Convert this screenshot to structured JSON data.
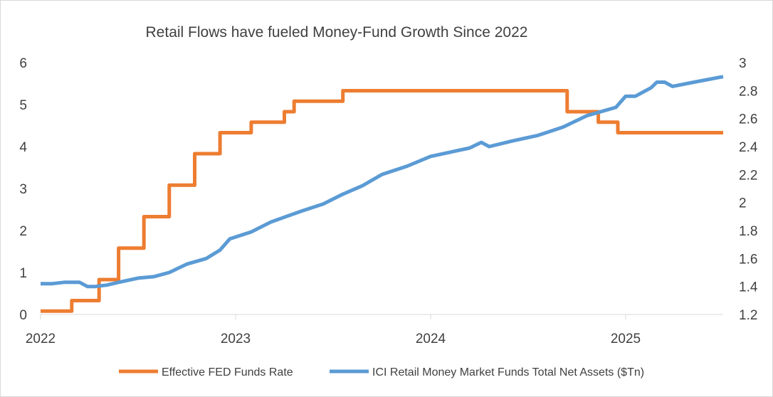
{
  "chart_data": {
    "type": "line",
    "title": "Retail Flows have fueled Money-Fund Growth Since 2022",
    "x_ticks": [
      "2022",
      "2023",
      "2024",
      "2025"
    ],
    "x_tick_values": [
      2022,
      2023,
      2024,
      2025
    ],
    "xlim": [
      2022.0,
      2025.5
    ],
    "y_left_ticks": [
      "0",
      "1",
      "2",
      "3",
      "4",
      "5",
      "6"
    ],
    "y_left_lim": [
      0,
      6
    ],
    "y_right_ticks": [
      "1.2",
      "1.4",
      "1.6",
      "1.8",
      "2",
      "2.2",
      "2.4",
      "2.6",
      "2.8",
      "3"
    ],
    "y_right_lim": [
      1.2,
      3.0
    ],
    "grid": false,
    "legend_position": "bottom",
    "series": [
      {
        "name": "Effective FED Funds Rate",
        "axis": "left",
        "color": "#ed7d31",
        "shape": "step",
        "x": [
          2022.0,
          2022.16,
          2022.3,
          2022.4,
          2022.53,
          2022.66,
          2022.79,
          2022.92,
          2023.08,
          2023.25,
          2023.3,
          2023.5,
          2023.55,
          2024.7,
          2024.86,
          2024.96,
          2025.5
        ],
        "values": [
          0.08,
          0.33,
          0.83,
          1.58,
          2.33,
          3.08,
          3.83,
          4.33,
          4.58,
          4.83,
          5.08,
          5.08,
          5.33,
          4.83,
          4.58,
          4.33,
          4.33
        ]
      },
      {
        "name": "ICI Retail Money Market Funds Total Net Assets ($Tn)",
        "axis": "right",
        "color": "#5b9bd5",
        "shape": "line",
        "x": [
          2022.0,
          2022.06,
          2022.12,
          2022.2,
          2022.24,
          2022.28,
          2022.34,
          2022.4,
          2022.5,
          2022.58,
          2022.66,
          2022.75,
          2022.85,
          2022.92,
          2022.97,
          2023.08,
          2023.18,
          2023.26,
          2023.34,
          2023.45,
          2023.55,
          2023.65,
          2023.75,
          2023.88,
          2024.0,
          2024.1,
          2024.2,
          2024.26,
          2024.3,
          2024.42,
          2024.55,
          2024.68,
          2024.8,
          2024.95,
          2025.0,
          2025.05,
          2025.13,
          2025.16,
          2025.2,
          2025.24,
          2025.35,
          2025.5
        ],
        "values": [
          1.42,
          1.42,
          1.43,
          1.43,
          1.4,
          1.4,
          1.41,
          1.43,
          1.46,
          1.47,
          1.5,
          1.56,
          1.6,
          1.66,
          1.74,
          1.79,
          1.86,
          1.9,
          1.94,
          1.99,
          2.06,
          2.12,
          2.2,
          2.26,
          2.33,
          2.36,
          2.39,
          2.43,
          2.4,
          2.44,
          2.48,
          2.54,
          2.62,
          2.68,
          2.76,
          2.76,
          2.82,
          2.86,
          2.86,
          2.83,
          2.86,
          2.9
        ]
      }
    ]
  }
}
